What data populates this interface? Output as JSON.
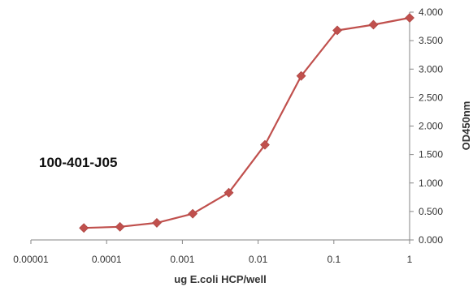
{
  "chart_data": {
    "type": "line",
    "title": "",
    "annotation": "100-401-J05",
    "xlabel": "ug E.coli HCP/well",
    "ylabel": "OD450nm",
    "x_scale": "log",
    "xlim": [
      1e-05,
      1
    ],
    "ylim": [
      0,
      4
    ],
    "x_ticks": [
      "0.00001",
      "0.0001",
      "0.001",
      "0.01",
      "0.1",
      "1"
    ],
    "y_ticks": [
      "0.000",
      "0.500",
      "1.000",
      "1.500",
      "2.000",
      "2.500",
      "3.000",
      "3.500",
      "4.000"
    ],
    "y_axis_side": "right",
    "grid": false,
    "legend": "none",
    "series": [
      {
        "color": "#c0504d",
        "marker": "diamond",
        "x": [
          5e-05,
          0.00015,
          0.00046,
          0.00137,
          0.0041,
          0.0123,
          0.037,
          0.111,
          0.333,
          1
        ],
        "y": [
          0.21,
          0.23,
          0.3,
          0.46,
          0.83,
          1.67,
          2.88,
          3.68,
          3.78,
          3.9
        ]
      }
    ]
  }
}
